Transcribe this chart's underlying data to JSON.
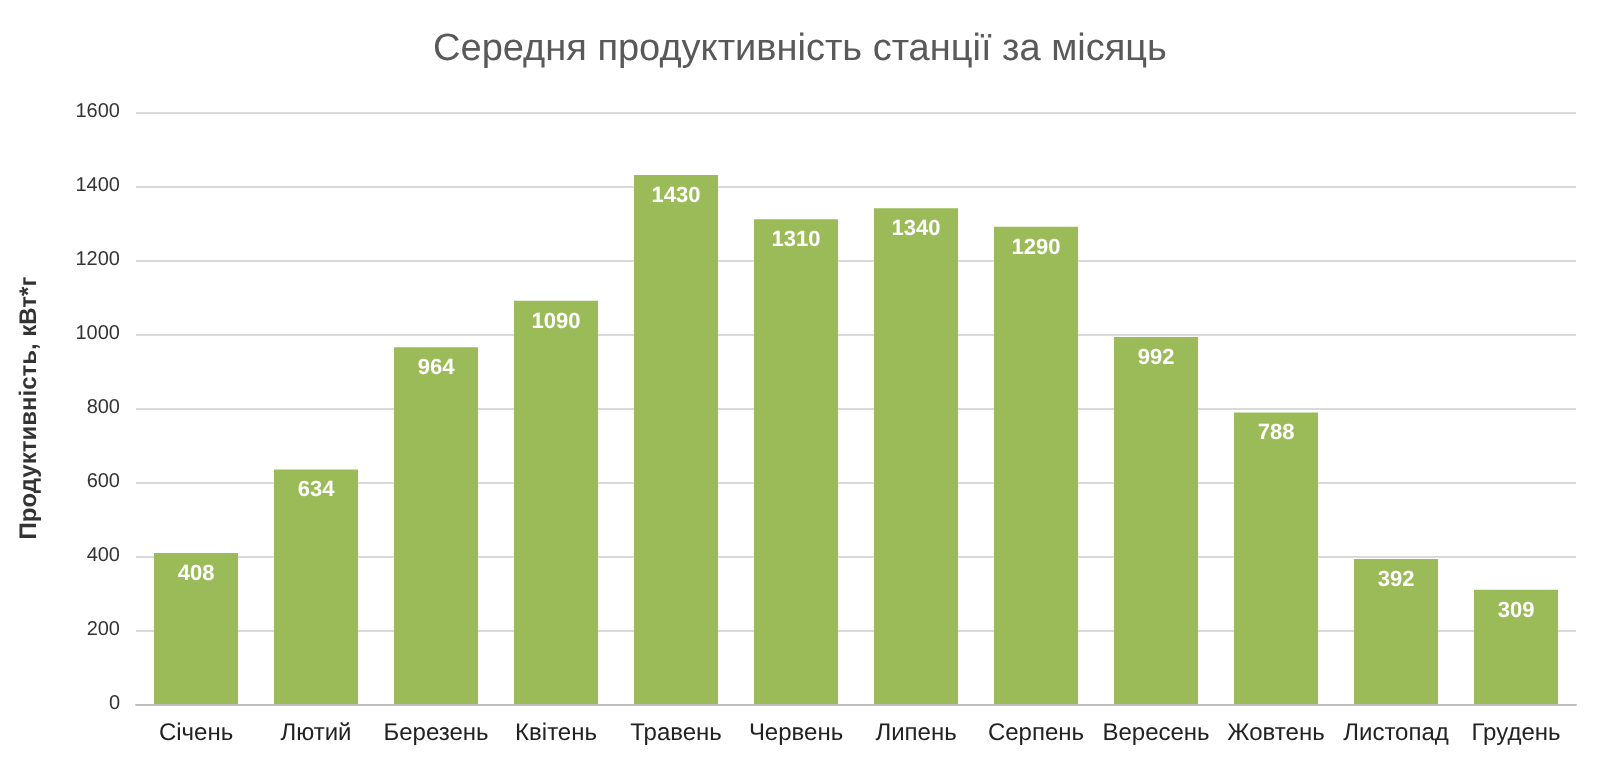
{
  "chart_data": {
    "type": "bar",
    "title": "Середня продуктивність станції за місяць",
    "ylabel": "Продуктивність, кВт*г",
    "categories": [
      "Січень",
      "Лютий",
      "Березень",
      "Квітень",
      "Травень",
      "Червень",
      "Липень",
      "Серпень",
      "Вересень",
      "Жовтень",
      "Листопад",
      "Грудень"
    ],
    "values": [
      408,
      634,
      964,
      1090,
      1430,
      1310,
      1340,
      1290,
      992,
      788,
      392,
      309
    ],
    "color": "#9bbb59",
    "ylim": [
      0,
      1600
    ],
    "yticks": [
      0,
      200,
      400,
      600,
      800,
      1000,
      1200,
      1400,
      1600
    ],
    "grid": "y",
    "data_labels": true
  }
}
